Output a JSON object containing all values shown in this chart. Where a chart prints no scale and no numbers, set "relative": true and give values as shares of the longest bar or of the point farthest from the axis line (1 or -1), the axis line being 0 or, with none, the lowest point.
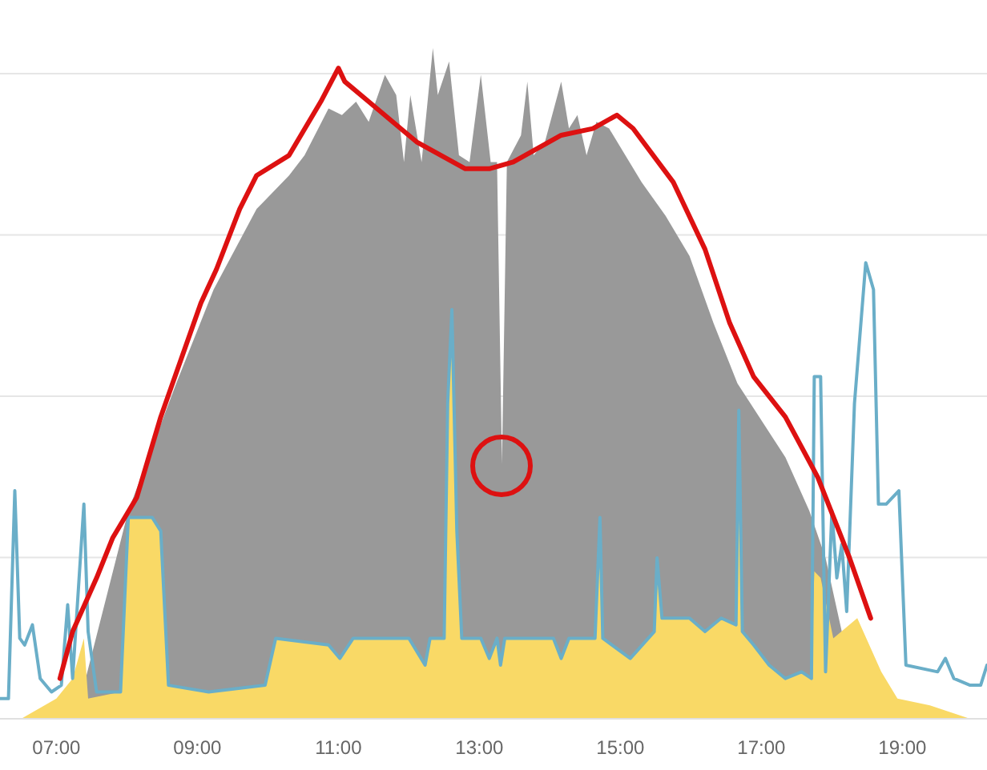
{
  "chart_data": {
    "type": "area",
    "relative": true,
    "grid": "y",
    "xlim": [
      6.2,
      20.2
    ],
    "xticks": [
      {
        "value": 7,
        "label": "07:00"
      },
      {
        "value": 9,
        "label": "09:00"
      },
      {
        "value": 11,
        "label": "11:00"
      },
      {
        "value": 13,
        "label": "13:00"
      },
      {
        "value": 15,
        "label": "15:00"
      },
      {
        "value": 17,
        "label": "17:00"
      },
      {
        "value": 19,
        "label": "19:00"
      }
    ],
    "series": [
      {
        "color": "#999999",
        "x": [
          7.27,
          8.02,
          8.7,
          9.23,
          9.84,
          10.3,
          10.52,
          10.86,
          11.05,
          11.25,
          11.43,
          11.66,
          11.82,
          11.93,
          12.02,
          12.18,
          12.34,
          12.41,
          12.57,
          12.71,
          12.86,
          13.02,
          13.16,
          13.25,
          13.32,
          13.39,
          13.59,
          13.68,
          13.77,
          13.93,
          14.16,
          14.27,
          14.39,
          14.52,
          14.66,
          14.84,
          15.07,
          15.3,
          15.64,
          15.98,
          16.32,
          16.66,
          17.34,
          17.68,
          17.91,
          18.14,
          18.25,
          18.39
        ],
        "values": [
          0,
          0.31,
          0.5,
          0.64,
          0.76,
          0.81,
          0.84,
          0.91,
          0.9,
          0.92,
          0.89,
          0.96,
          0.93,
          0.83,
          0.93,
          0.83,
          1,
          0.93,
          0.98,
          0.84,
          0.83,
          0.96,
          0.83,
          0.83,
          0.38,
          0.83,
          0.87,
          0.95,
          0.84,
          0.86,
          0.95,
          0.88,
          0.9,
          0.84,
          0.89,
          0.88,
          0.84,
          0.8,
          0.75,
          0.69,
          0.59,
          0.5,
          0.39,
          0.31,
          0.24,
          0.13,
          null,
          0
        ]
      },
      {
        "color": "#f9d966",
        "x": [
          6.5,
          7,
          7.23,
          7.39,
          7.45,
          7.91,
          8.02,
          8.36,
          8.48,
          8.59,
          9.16,
          9.96,
          10.11,
          10.86,
          11.02,
          11.21,
          12,
          12.23,
          12.3,
          12.5,
          12.55,
          12.61,
          12.68,
          12.75,
          13.02,
          13.14,
          13.25,
          13.3,
          13.36,
          14.05,
          14.16,
          14.27,
          14.64,
          14.71,
          14.75,
          15.14,
          15.48,
          15.52,
          15.59,
          15.98,
          16.2,
          16.43,
          16.64,
          16.68,
          16.73,
          16.89,
          17.11,
          17.34,
          17.57,
          17.71,
          17.75,
          17.84,
          18.02,
          18.36,
          18.7,
          18.93,
          19.39,
          19.96
        ],
        "values": [
          0,
          0.03,
          0.06,
          0.12,
          0.03,
          0.04,
          0.3,
          0.3,
          0.28,
          0.05,
          0.04,
          0.05,
          0.12,
          0.11,
          0.09,
          0.12,
          0.12,
          0.08,
          0.12,
          0.12,
          0.47,
          0.61,
          0.28,
          0.12,
          0.12,
          0.09,
          0.12,
          0.08,
          0.12,
          0.12,
          0.09,
          0.12,
          0.12,
          0.3,
          0.12,
          0.09,
          0.13,
          0.24,
          0.15,
          0.15,
          0.13,
          0.15,
          0.14,
          0.46,
          0.13,
          0.11,
          0.08,
          0.06,
          0.07,
          0.06,
          0.22,
          0.21,
          0.12,
          0.15,
          0.07,
          0.03,
          0.02,
          0
        ]
      },
      {
        "type": "line",
        "color": "#6aaec8",
        "x": [
          6.2,
          6.32,
          6.41,
          6.48,
          6.55,
          6.66,
          6.77,
          6.93,
          7.07,
          7.16,
          7.23,
          7.39,
          7.45,
          7.57,
          7.91,
          8.02,
          8.36,
          8.48,
          8.59,
          9.16,
          9.96,
          10.11,
          10.86,
          11.02,
          11.21,
          12,
          12.23,
          12.3,
          12.5,
          12.55,
          12.61,
          12.68,
          12.75,
          13.02,
          13.14,
          13.25,
          13.3,
          13.36,
          14.05,
          14.16,
          14.27,
          14.64,
          14.71,
          14.75,
          15.14,
          15.48,
          15.52,
          15.59,
          15.98,
          16.2,
          16.43,
          16.64,
          16.68,
          16.73,
          16.89,
          17.11,
          17.34,
          17.57,
          17.71,
          17.75,
          17.84,
          17.91,
          18,
          18.07,
          18.14,
          18.21,
          18.32,
          18.48,
          18.59,
          18.66,
          18.77,
          18.95,
          19.05,
          19.5,
          19.61,
          19.73,
          19.96,
          20.11,
          20.2
        ],
        "values": [
          0.03,
          0.03,
          0.34,
          0.12,
          0.11,
          0.14,
          0.06,
          0.04,
          0.05,
          0.17,
          0.06,
          0.32,
          0.13,
          0.04,
          0.04,
          0.3,
          0.3,
          0.28,
          0.05,
          0.04,
          0.05,
          0.12,
          0.11,
          0.09,
          0.12,
          0.12,
          0.08,
          0.12,
          0.12,
          0.47,
          0.61,
          0.28,
          0.12,
          0.12,
          0.09,
          0.12,
          0.08,
          0.12,
          0.12,
          0.09,
          0.12,
          0.12,
          0.3,
          0.12,
          0.09,
          0.13,
          0.24,
          0.15,
          0.15,
          0.13,
          0.15,
          0.14,
          0.46,
          0.13,
          0.11,
          0.08,
          0.06,
          0.07,
          0.06,
          0.51,
          0.51,
          0.07,
          0.31,
          0.21,
          0.26,
          0.16,
          0.47,
          0.68,
          0.64,
          0.32,
          0.32,
          0.34,
          0.08,
          0.07,
          0.09,
          0.06,
          0.05,
          0.05,
          0.08
        ]
      },
      {
        "type": "line",
        "color": "#dd1111",
        "x": [
          7.05,
          7.23,
          7.57,
          7.8,
          8.14,
          8.48,
          9.05,
          9.27,
          9.6,
          9.84,
          10.3,
          10.75,
          11,
          11.09,
          11.43,
          12.11,
          12.8,
          13.14,
          13.48,
          14.16,
          14.61,
          14.95,
          15.18,
          15.75,
          16.2,
          16.55,
          16.89,
          17.34,
          17.8,
          18.25,
          18.55
        ],
        "values": [
          0.06,
          0.13,
          0.21,
          0.27,
          0.33,
          0.45,
          0.62,
          0.67,
          0.76,
          0.81,
          0.84,
          0.92,
          0.97,
          0.95,
          0.92,
          0.86,
          0.82,
          0.82,
          0.83,
          0.87,
          0.88,
          0.9,
          0.88,
          0.8,
          0.7,
          0.59,
          0.51,
          0.45,
          0.36,
          0.24,
          0.15
        ]
      }
    ]
  }
}
